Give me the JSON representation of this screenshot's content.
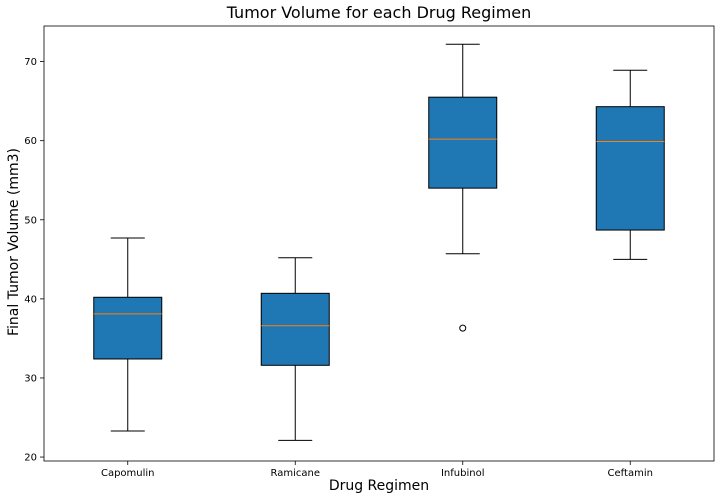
{
  "chart_data": {
    "type": "box",
    "title": "Tumor Volume for each Drug Regimen",
    "xlabel": "Drug Regimen",
    "ylabel": "Final Tumor Volume (mm3)",
    "ylim": [
      19.5,
      74.5
    ],
    "yticks": [
      20,
      30,
      40,
      50,
      60,
      70
    ],
    "grid": false,
    "categories": [
      "Capomulin",
      "Ramicane",
      "Infubinol",
      "Ceftamin"
    ],
    "boxes": [
      {
        "whisker_low": 23.3,
        "q1": 32.4,
        "median": 38.1,
        "q3": 40.2,
        "whisker_high": 47.7,
        "outliers": []
      },
      {
        "whisker_low": 22.1,
        "q1": 31.6,
        "median": 36.6,
        "q3": 40.7,
        "whisker_high": 45.2,
        "outliers": []
      },
      {
        "whisker_low": 45.7,
        "q1": 54.0,
        "median": 60.2,
        "q3": 65.5,
        "whisker_high": 72.2,
        "outliers": [
          36.3
        ]
      },
      {
        "whisker_low": 45.0,
        "q1": 48.7,
        "median": 59.9,
        "q3": 64.3,
        "whisker_high": 68.9,
        "outliers": []
      }
    ],
    "colors": {
      "box_fill": "#1f77b4",
      "median": "#ff7f0e",
      "line": "#000000",
      "background": "#ffffff"
    }
  }
}
